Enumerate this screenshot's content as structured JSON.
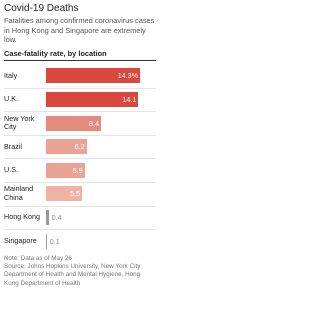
{
  "chart_data": {
    "type": "bar",
    "orientation": "horizontal",
    "title": "Covid-19 Deaths",
    "subtitle": "Fatalities among confirmed coronavirus cases in Hong Kong and Singapore are extremely low.",
    "axis_title": "Case-fatality rate, by location",
    "categories": [
      "Italy",
      "U.K.",
      "New York City",
      "Brazil",
      "U.S.",
      "Mainland China",
      "Hong Kong",
      "Singapore"
    ],
    "values": [
      14.3,
      14.1,
      8.4,
      6.2,
      5.9,
      5.5,
      0.4,
      0.1
    ],
    "value_labels": [
      "14.3%",
      "14.1",
      "8.4",
      "6.2",
      "5.9",
      "5.5",
      "0.4",
      "0.1"
    ],
    "colors": [
      "#d9473f",
      "#d9473f",
      "#e58a7c",
      "#eba395",
      "#eba395",
      "#efb3a6",
      "#9a9a9a",
      "#9a9a9a"
    ],
    "xlim": [
      0,
      14.5
    ],
    "note": "Note: Data as of May 26",
    "source": "Source: Johns Hopkins University, New York City Department of Health and Mental Hygiene, Hong Kong Department of Health"
  }
}
